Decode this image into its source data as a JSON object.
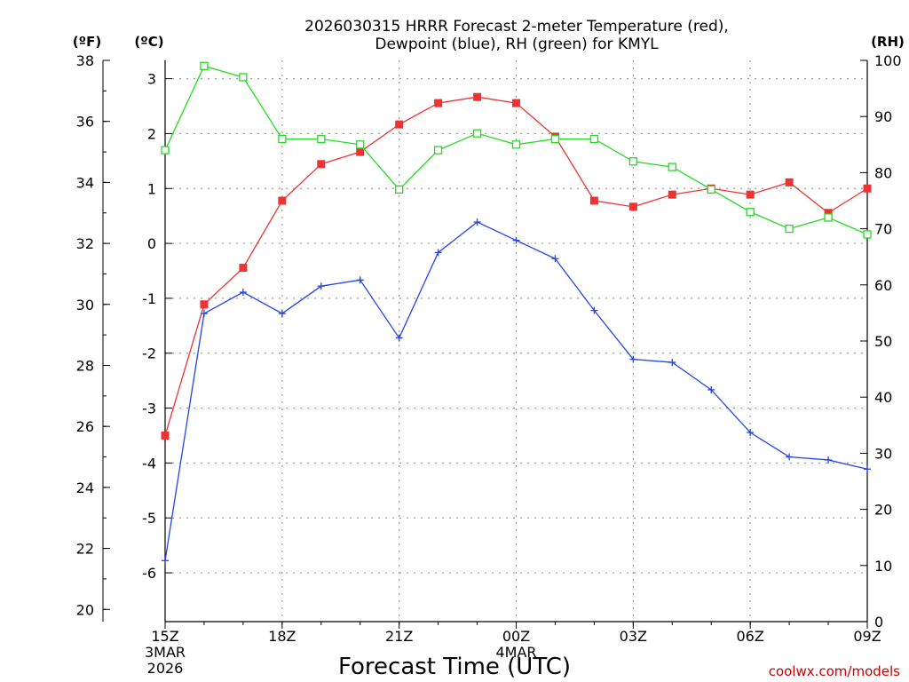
{
  "chart_data": {
    "type": "line",
    "title_line1": "2026030315 HRRR Forecast 2-meter Temperature (red),",
    "title_line2": "Dewpoint (blue), RH (green) for KMYL",
    "xlabel": "Forecast Time (UTC)",
    "credit": "coolwx.com/models",
    "units": {
      "fahrenheit": "(ºF)",
      "celsius": "(ºC)",
      "rh": "(RH)"
    },
    "x_hours": [
      0,
      1,
      2,
      3,
      4,
      5,
      6,
      7,
      8,
      9,
      10,
      11,
      12,
      13,
      14,
      15,
      16,
      17,
      18
    ],
    "x_ticks": [
      {
        "hour": 0,
        "label": "15Z",
        "sub1": "3MAR",
        "sub2": "2026"
      },
      {
        "hour": 3,
        "label": "18Z",
        "sub1": "",
        "sub2": ""
      },
      {
        "hour": 6,
        "label": "21Z",
        "sub1": "",
        "sub2": ""
      },
      {
        "hour": 9,
        "label": "00Z",
        "sub1": "4MAR",
        "sub2": ""
      },
      {
        "hour": 12,
        "label": "03Z",
        "sub1": "",
        "sub2": ""
      },
      {
        "hour": 15,
        "label": "06Z",
        "sub1": "",
        "sub2": ""
      },
      {
        "hour": 18,
        "label": "09Z",
        "sub1": "",
        "sub2": ""
      }
    ],
    "f_axis": {
      "min": 19.6,
      "max": 38,
      "ticks": [
        "20",
        "22",
        "24",
        "26",
        "28",
        "30",
        "32",
        "34",
        "36",
        "38"
      ]
    },
    "c_axis": {
      "ticks": [
        "-6",
        "-5",
        "-4",
        "-3",
        "-2",
        "-1",
        "0",
        "1",
        "2",
        "3"
      ]
    },
    "rh_axis": {
      "min": 0,
      "max": 100,
      "ticks": [
        "0",
        "10",
        "20",
        "30",
        "40",
        "50",
        "60",
        "70",
        "80",
        "90",
        "100"
      ]
    },
    "series": [
      {
        "name": "Temperature",
        "color": "#ee3333",
        "marker": "filled-square",
        "axis": "F",
        "values": [
          25.7,
          30.0,
          31.2,
          33.4,
          34.6,
          35.0,
          35.9,
          36.6,
          36.8,
          36.6,
          35.5,
          33.4,
          33.2,
          33.6,
          33.8,
          33.6,
          34.0,
          33.0,
          33.8
        ]
      },
      {
        "name": "Dewpoint",
        "color": "#2244ee",
        "marker": "plus",
        "axis": "F",
        "values": [
          21.6,
          29.7,
          30.4,
          29.7,
          30.6,
          30.8,
          28.9,
          31.7,
          32.7,
          32.1,
          31.5,
          29.8,
          28.2,
          28.1,
          27.2,
          25.8,
          25.0,
          24.9,
          24.6
        ]
      },
      {
        "name": "RH",
        "color": "#22dd22",
        "marker": "open-square",
        "axis": "RH",
        "values": [
          84,
          99,
          97,
          86,
          86,
          85,
          77,
          84,
          87,
          85,
          86,
          86,
          82,
          81,
          77,
          73,
          70,
          72,
          69
        ]
      }
    ]
  }
}
